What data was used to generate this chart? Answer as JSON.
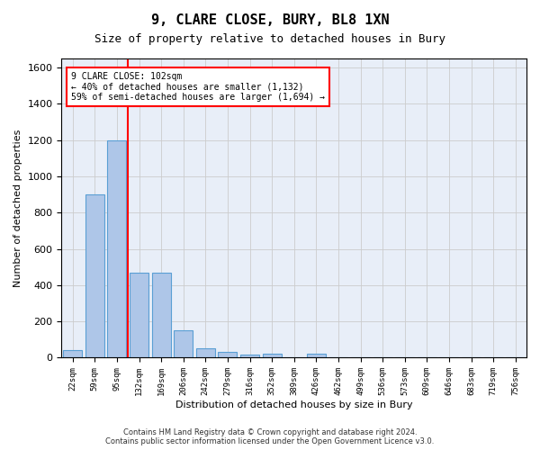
{
  "title": "9, CLARE CLOSE, BURY, BL8 1XN",
  "subtitle": "Size of property relative to detached houses in Bury",
  "xlabel": "Distribution of detached houses by size in Bury",
  "ylabel": "Number of detached properties",
  "footer_line1": "Contains HM Land Registry data © Crown copyright and database right 2024.",
  "footer_line2": "Contains public sector information licensed under the Open Government Licence v3.0.",
  "bins": [
    "22sqm",
    "59sqm",
    "95sqm",
    "132sqm",
    "169sqm",
    "206sqm",
    "242sqm",
    "279sqm",
    "316sqm",
    "352sqm",
    "389sqm",
    "426sqm",
    "462sqm",
    "499sqm",
    "536sqm",
    "573sqm",
    "609sqm",
    "646sqm",
    "683sqm",
    "719sqm",
    "756sqm"
  ],
  "bar_values": [
    40,
    900,
    1200,
    470,
    470,
    150,
    50,
    30,
    15,
    20,
    0,
    20,
    0,
    0,
    0,
    0,
    0,
    0,
    0,
    0,
    0
  ],
  "bar_color": "#aec6e8",
  "bar_edge_color": "#5a9fd4",
  "ylim": [
    0,
    1650
  ],
  "yticks": [
    0,
    200,
    400,
    600,
    800,
    1000,
    1200,
    1400,
    1600
  ],
  "vline_pos": 2.5,
  "vline_color": "red",
  "annotation_title": "9 CLARE CLOSE: 102sqm",
  "annotation_line1": "← 40% of detached houses are smaller (1,132)",
  "annotation_line2": "59% of semi-detached houses are larger (1,694) →",
  "annotation_box_color": "red",
  "grid_color": "#cccccc",
  "background_color": "#e8eef8"
}
